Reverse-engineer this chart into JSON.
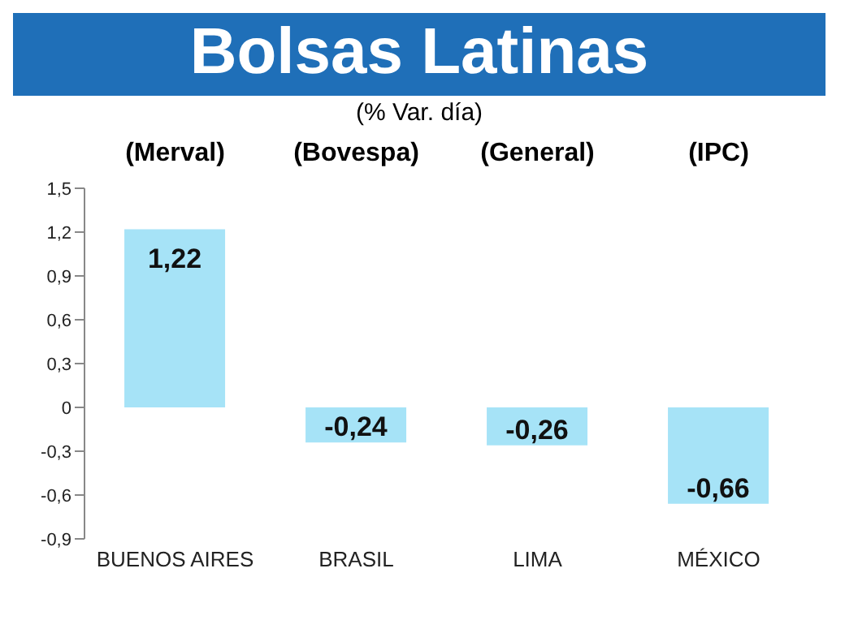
{
  "chart_data": {
    "type": "bar",
    "title": "Bolsas Latinas",
    "subtitle": "(% Var. día)",
    "categories": [
      "BUENOS AIRES",
      "BRASIL",
      "LIMA",
      "MÉXICO"
    ],
    "values": [
      1.22,
      -0.24,
      -0.26,
      -0.66
    ],
    "value_labels": [
      "1,22",
      "-0,24",
      "-0,26",
      "-0,66"
    ],
    "color": "#a6e3f7",
    "ylim": [
      -0.9,
      1.5
    ],
    "yticks": [
      {
        "value": -0.9,
        "label": "-0,9"
      },
      {
        "value": -0.6,
        "label": "-0,6"
      },
      {
        "value": -0.3,
        "label": "-0,3"
      },
      {
        "value": 0,
        "label": "0"
      },
      {
        "value": 0.3,
        "label": "0,3"
      },
      {
        "value": 0.6,
        "label": "0,6"
      },
      {
        "value": 0.9,
        "label": "0,9"
      },
      {
        "value": 1.2,
        "label": "1,2"
      },
      {
        "value": 1.5,
        "label": "1,5"
      }
    ],
    "annotations": [
      "(Merval)",
      "(Bovespa)",
      "(General)",
      "(IPC)"
    ],
    "grid": false,
    "legend": false
  }
}
